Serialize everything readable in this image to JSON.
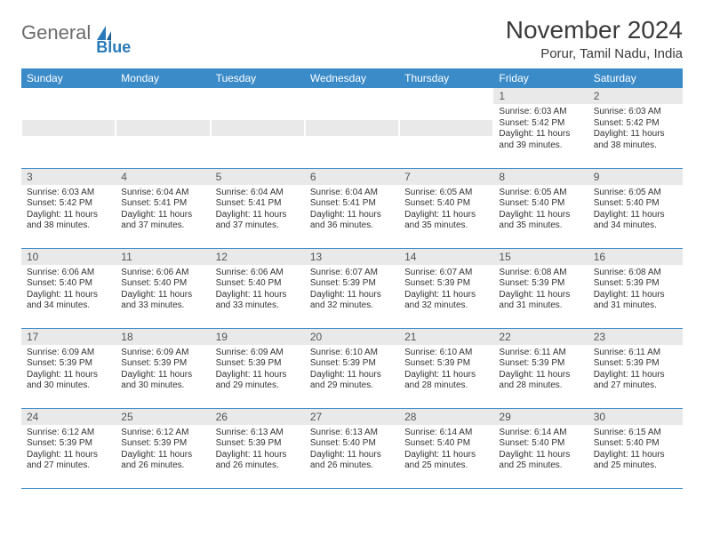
{
  "logo": {
    "text1": "General",
    "text2": "Blue"
  },
  "header": {
    "title": "November 2024",
    "location": "Porur, Tamil Nadu, India"
  },
  "colors": {
    "header_bg": "#3b8bc9",
    "header_text": "#ffffff",
    "daynum_bg": "#e9e9e9",
    "rule": "#3b8bc9"
  },
  "dayNames": [
    "Sunday",
    "Monday",
    "Tuesday",
    "Wednesday",
    "Thursday",
    "Friday",
    "Saturday"
  ],
  "weeks": [
    [
      null,
      null,
      null,
      null,
      null,
      {
        "n": "1",
        "sr": "Sunrise: 6:03 AM",
        "ss": "Sunset: 5:42 PM",
        "dl": "Daylight: 11 hours and 39 minutes."
      },
      {
        "n": "2",
        "sr": "Sunrise: 6:03 AM",
        "ss": "Sunset: 5:42 PM",
        "dl": "Daylight: 11 hours and 38 minutes."
      }
    ],
    [
      {
        "n": "3",
        "sr": "Sunrise: 6:03 AM",
        "ss": "Sunset: 5:42 PM",
        "dl": "Daylight: 11 hours and 38 minutes."
      },
      {
        "n": "4",
        "sr": "Sunrise: 6:04 AM",
        "ss": "Sunset: 5:41 PM",
        "dl": "Daylight: 11 hours and 37 minutes."
      },
      {
        "n": "5",
        "sr": "Sunrise: 6:04 AM",
        "ss": "Sunset: 5:41 PM",
        "dl": "Daylight: 11 hours and 37 minutes."
      },
      {
        "n": "6",
        "sr": "Sunrise: 6:04 AM",
        "ss": "Sunset: 5:41 PM",
        "dl": "Daylight: 11 hours and 36 minutes."
      },
      {
        "n": "7",
        "sr": "Sunrise: 6:05 AM",
        "ss": "Sunset: 5:40 PM",
        "dl": "Daylight: 11 hours and 35 minutes."
      },
      {
        "n": "8",
        "sr": "Sunrise: 6:05 AM",
        "ss": "Sunset: 5:40 PM",
        "dl": "Daylight: 11 hours and 35 minutes."
      },
      {
        "n": "9",
        "sr": "Sunrise: 6:05 AM",
        "ss": "Sunset: 5:40 PM",
        "dl": "Daylight: 11 hours and 34 minutes."
      }
    ],
    [
      {
        "n": "10",
        "sr": "Sunrise: 6:06 AM",
        "ss": "Sunset: 5:40 PM",
        "dl": "Daylight: 11 hours and 34 minutes."
      },
      {
        "n": "11",
        "sr": "Sunrise: 6:06 AM",
        "ss": "Sunset: 5:40 PM",
        "dl": "Daylight: 11 hours and 33 minutes."
      },
      {
        "n": "12",
        "sr": "Sunrise: 6:06 AM",
        "ss": "Sunset: 5:40 PM",
        "dl": "Daylight: 11 hours and 33 minutes."
      },
      {
        "n": "13",
        "sr": "Sunrise: 6:07 AM",
        "ss": "Sunset: 5:39 PM",
        "dl": "Daylight: 11 hours and 32 minutes."
      },
      {
        "n": "14",
        "sr": "Sunrise: 6:07 AM",
        "ss": "Sunset: 5:39 PM",
        "dl": "Daylight: 11 hours and 32 minutes."
      },
      {
        "n": "15",
        "sr": "Sunrise: 6:08 AM",
        "ss": "Sunset: 5:39 PM",
        "dl": "Daylight: 11 hours and 31 minutes."
      },
      {
        "n": "16",
        "sr": "Sunrise: 6:08 AM",
        "ss": "Sunset: 5:39 PM",
        "dl": "Daylight: 11 hours and 31 minutes."
      }
    ],
    [
      {
        "n": "17",
        "sr": "Sunrise: 6:09 AM",
        "ss": "Sunset: 5:39 PM",
        "dl": "Daylight: 11 hours and 30 minutes."
      },
      {
        "n": "18",
        "sr": "Sunrise: 6:09 AM",
        "ss": "Sunset: 5:39 PM",
        "dl": "Daylight: 11 hours and 30 minutes."
      },
      {
        "n": "19",
        "sr": "Sunrise: 6:09 AM",
        "ss": "Sunset: 5:39 PM",
        "dl": "Daylight: 11 hours and 29 minutes."
      },
      {
        "n": "20",
        "sr": "Sunrise: 6:10 AM",
        "ss": "Sunset: 5:39 PM",
        "dl": "Daylight: 11 hours and 29 minutes."
      },
      {
        "n": "21",
        "sr": "Sunrise: 6:10 AM",
        "ss": "Sunset: 5:39 PM",
        "dl": "Daylight: 11 hours and 28 minutes."
      },
      {
        "n": "22",
        "sr": "Sunrise: 6:11 AM",
        "ss": "Sunset: 5:39 PM",
        "dl": "Daylight: 11 hours and 28 minutes."
      },
      {
        "n": "23",
        "sr": "Sunrise: 6:11 AM",
        "ss": "Sunset: 5:39 PM",
        "dl": "Daylight: 11 hours and 27 minutes."
      }
    ],
    [
      {
        "n": "24",
        "sr": "Sunrise: 6:12 AM",
        "ss": "Sunset: 5:39 PM",
        "dl": "Daylight: 11 hours and 27 minutes."
      },
      {
        "n": "25",
        "sr": "Sunrise: 6:12 AM",
        "ss": "Sunset: 5:39 PM",
        "dl": "Daylight: 11 hours and 26 minutes."
      },
      {
        "n": "26",
        "sr": "Sunrise: 6:13 AM",
        "ss": "Sunset: 5:39 PM",
        "dl": "Daylight: 11 hours and 26 minutes."
      },
      {
        "n": "27",
        "sr": "Sunrise: 6:13 AM",
        "ss": "Sunset: 5:40 PM",
        "dl": "Daylight: 11 hours and 26 minutes."
      },
      {
        "n": "28",
        "sr": "Sunrise: 6:14 AM",
        "ss": "Sunset: 5:40 PM",
        "dl": "Daylight: 11 hours and 25 minutes."
      },
      {
        "n": "29",
        "sr": "Sunrise: 6:14 AM",
        "ss": "Sunset: 5:40 PM",
        "dl": "Daylight: 11 hours and 25 minutes."
      },
      {
        "n": "30",
        "sr": "Sunrise: 6:15 AM",
        "ss": "Sunset: 5:40 PM",
        "dl": "Daylight: 11 hours and 25 minutes."
      }
    ]
  ]
}
